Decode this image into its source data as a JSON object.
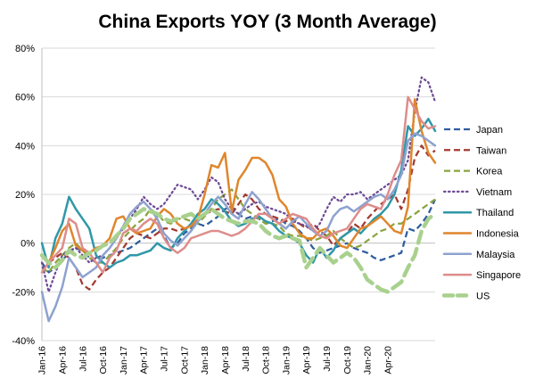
{
  "chart_data": {
    "type": "line",
    "title": "China Exports YOY (3 Month Average)",
    "xlabel": "",
    "ylabel": "",
    "ylim": [
      -40,
      80
    ],
    "yticks": [
      -40,
      -20,
      0,
      20,
      40,
      60,
      80
    ],
    "ytick_labels": [
      "-40%",
      "-20%",
      "0%",
      "20%",
      "40%",
      "60%",
      "80%"
    ],
    "x_tick_labels": [
      "Jan-16",
      "Apr-16",
      "Jul-16",
      "Oct-16",
      "Jan-17",
      "Apr-17",
      "Jul-17",
      "Oct-17",
      "Jan-18",
      "Apr-18",
      "Jul-18",
      "Oct-18",
      "Jan-19",
      "Apr-19",
      "Jul-19",
      "Oct-19",
      "Jan-20",
      "Apr-20"
    ],
    "x_tick_every": 3,
    "legend_position": "right",
    "series": [
      {
        "name": "Japan",
        "color": "#2e5d9e",
        "style": "dashed",
        "values": [
          -8,
          -12,
          -10,
          -7,
          -4,
          -2,
          -3,
          -6,
          -8,
          -6,
          -5,
          -4,
          -3,
          -2,
          0,
          2,
          4,
          6,
          3,
          -2,
          0,
          4,
          6,
          8,
          7,
          9,
          11,
          14,
          15,
          12,
          10,
          11,
          10,
          8,
          9,
          10,
          8,
          7,
          5,
          2,
          -2,
          -4,
          -3,
          -2,
          -1,
          0,
          -2,
          -3,
          -4,
          -6,
          -7,
          -6,
          -5,
          -4,
          6,
          5,
          8,
          12,
          18
        ]
      },
      {
        "name": "Taiwan",
        "color": "#a33a32",
        "style": "dashed",
        "values": [
          -5,
          -8,
          -6,
          -4,
          -6,
          -10,
          -17,
          -19,
          -15,
          -12,
          -10,
          -6,
          -2,
          2,
          4,
          3,
          2,
          4,
          6,
          6,
          5,
          6,
          7,
          9,
          12,
          13,
          14,
          13,
          12,
          16,
          20,
          18,
          14,
          12,
          11,
          10,
          9,
          10,
          8,
          6,
          8,
          5,
          3,
          -1,
          2,
          4,
          8,
          6,
          10,
          13,
          16,
          18,
          20,
          14,
          22,
          35,
          40,
          36,
          38
        ]
      },
      {
        "name": "Korea",
        "color": "#8aa43e",
        "style": "dashed",
        "values": [
          -10,
          -12,
          -8,
          -5,
          -2,
          0,
          -3,
          -6,
          -8,
          -8,
          -5,
          -2,
          2,
          5,
          8,
          10,
          14,
          12,
          9,
          8,
          10,
          10,
          9,
          8,
          11,
          14,
          18,
          20,
          22,
          18,
          14,
          12,
          10,
          8,
          8,
          7,
          4,
          3,
          3,
          2,
          1,
          2,
          3,
          5,
          2,
          0,
          -2,
          -1,
          1,
          3,
          5,
          6,
          8,
          8,
          10,
          12,
          14,
          16,
          18
        ]
      },
      {
        "name": "Vietnam",
        "color": "#6e4b96",
        "style": "dotted",
        "values": [
          -8,
          -20,
          -12,
          -5,
          -3,
          -2,
          -5,
          -8,
          -6,
          -5,
          -2,
          2,
          6,
          10,
          14,
          19,
          16,
          14,
          16,
          20,
          24,
          23,
          22,
          18,
          22,
          27,
          25,
          18,
          14,
          12,
          14,
          16,
          17,
          15,
          14,
          13,
          12,
          9,
          8,
          7,
          5,
          8,
          14,
          19,
          17,
          20,
          20,
          21,
          18,
          20,
          22,
          24,
          26,
          28,
          34,
          54,
          68,
          66,
          58
        ]
      },
      {
        "name": "Thailand",
        "color": "#2f98a8",
        "style": "solid",
        "values": [
          0,
          -10,
          2,
          8,
          19,
          14,
          10,
          6,
          -5,
          -8,
          -10,
          -8,
          -7,
          -5,
          -5,
          -4,
          -3,
          0,
          -2,
          -3,
          2,
          5,
          8,
          12,
          14,
          18,
          16,
          13,
          9,
          7,
          8,
          10,
          11,
          9,
          8,
          5,
          3,
          2,
          0,
          -5,
          -8,
          -2,
          -6,
          -3,
          2,
          4,
          6,
          4,
          7,
          10,
          12,
          15,
          20,
          30,
          48,
          44,
          47,
          51,
          46
        ]
      },
      {
        "name": "Indonesia",
        "color": "#e0862c",
        "style": "solid",
        "values": [
          -5,
          -8,
          -2,
          5,
          8,
          -1,
          -3,
          -4,
          -2,
          -1,
          2,
          10,
          11,
          6,
          4,
          5,
          6,
          11,
          14,
          12,
          8,
          6,
          7,
          10,
          20,
          32,
          31,
          37,
          13,
          26,
          30,
          35,
          35,
          33,
          28,
          18,
          15,
          8,
          4,
          2,
          2,
          5,
          6,
          3,
          -1,
          -2,
          2,
          6,
          7,
          9,
          11,
          8,
          5,
          4,
          15,
          59,
          46,
          37,
          33
        ]
      },
      {
        "name": "Malaysia",
        "color": "#8ea2cf",
        "style": "solid",
        "values": [
          -20,
          -32,
          -26,
          -18,
          -6,
          -10,
          -14,
          -12,
          -10,
          -5,
          -2,
          2,
          7,
          12,
          15,
          17,
          14,
          10,
          4,
          1,
          -1,
          2,
          5,
          9,
          12,
          16,
          19,
          16,
          12,
          10,
          16,
          21,
          18,
          14,
          10,
          8,
          6,
          9,
          11,
          8,
          5,
          3,
          5,
          11,
          14,
          15,
          13,
          15,
          17,
          19,
          20,
          18,
          22,
          28,
          42,
          45,
          44,
          42,
          40
        ]
      },
      {
        "name": "Singapore",
        "color": "#dd8d8b",
        "style": "solid",
        "values": [
          -12,
          -8,
          -5,
          -2,
          10,
          8,
          -2,
          -4,
          -8,
          -12,
          -6,
          -3,
          4,
          6,
          5,
          8,
          10,
          8,
          2,
          -2,
          -4,
          -2,
          2,
          3,
          4,
          5,
          5,
          4,
          3,
          4,
          6,
          9,
          12,
          12,
          10,
          8,
          10,
          12,
          11,
          10,
          6,
          3,
          2,
          4,
          5,
          6,
          10,
          14,
          16,
          15,
          14,
          20,
          28,
          34,
          60,
          55,
          50,
          47,
          48
        ]
      },
      {
        "name": "US",
        "color": "#a9d18e",
        "style": "longdash",
        "values": [
          -5,
          -8,
          -10,
          -7,
          -3,
          -5,
          -6,
          -4,
          -3,
          -1,
          0,
          3,
          6,
          10,
          12,
          14,
          13,
          12,
          10,
          9,
          10,
          11,
          12,
          10,
          12,
          14,
          12,
          10,
          9,
          8,
          9,
          9,
          8,
          5,
          3,
          2,
          3,
          2,
          1,
          -10,
          -6,
          -2,
          -5,
          -8,
          -6,
          -4,
          -6,
          -10,
          -15,
          -17,
          -19,
          -20,
          -18,
          -16,
          -10,
          -5,
          5,
          10,
          12
        ]
      }
    ]
  }
}
